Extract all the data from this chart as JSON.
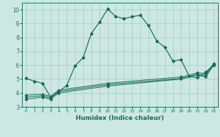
{
  "xlabel": "Humidex (Indice chaleur)",
  "bg_color": "#cde8e2",
  "grid_color": "#a8cec8",
  "line_color": "#1a6b5a",
  "xlim": [
    -0.5,
    23.5
  ],
  "ylim": [
    3.0,
    10.5
  ],
  "xticks": [
    0,
    1,
    2,
    3,
    4,
    5,
    6,
    7,
    8,
    9,
    10,
    11,
    12,
    13,
    14,
    15,
    16,
    17,
    18,
    19,
    20,
    21,
    22,
    23
  ],
  "yticks": [
    3,
    4,
    5,
    6,
    7,
    8,
    9,
    10
  ],
  "main_line_x": [
    0,
    1,
    2,
    3,
    4,
    5,
    6,
    7,
    8,
    9,
    10,
    11,
    12,
    13,
    14,
    15,
    16,
    17,
    18,
    19,
    20,
    21,
    22,
    23
  ],
  "main_line_y": [
    5.05,
    4.85,
    4.7,
    3.7,
    4.1,
    4.55,
    5.95,
    6.55,
    8.3,
    9.1,
    10.05,
    9.5,
    9.35,
    9.5,
    9.6,
    8.85,
    7.75,
    7.3,
    6.3,
    6.4,
    5.2,
    5.1,
    5.5,
    6.0
  ],
  "line2_x": [
    0,
    2,
    3,
    4,
    10,
    19,
    21,
    22,
    23
  ],
  "line2_y": [
    3.55,
    3.7,
    3.55,
    4.0,
    4.5,
    5.0,
    5.3,
    5.15,
    6.0
  ],
  "line3_x": [
    0,
    2,
    3,
    4,
    10,
    19,
    21,
    22,
    23
  ],
  "line3_y": [
    3.7,
    3.8,
    3.65,
    4.1,
    4.6,
    5.05,
    5.35,
    5.25,
    6.1
  ],
  "line4_x": [
    0,
    2,
    3,
    4,
    10,
    19,
    21,
    22,
    23
  ],
  "line4_y": [
    3.85,
    3.9,
    3.75,
    4.2,
    4.7,
    5.15,
    5.45,
    5.4,
    6.1
  ]
}
